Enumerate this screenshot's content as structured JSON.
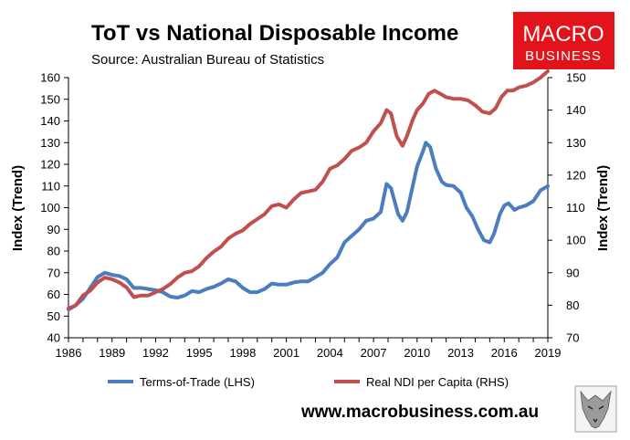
{
  "header": {
    "title": "ToT vs National Disposable Income",
    "subtitle": "Source: Australian Bureau of Statistics"
  },
  "logo": {
    "line1": "MACRO",
    "line2": "BUSINESS",
    "color": "#e3131b"
  },
  "footer": {
    "url": "www.macrobusiness.com.au"
  },
  "colors": {
    "tot": "#4a7ebf",
    "ndi": "#c0504d",
    "axis": "#000000"
  },
  "chart_data": {
    "type": "line",
    "title": "ToT vs National Disposable Income",
    "xlabel": "",
    "ylabel_left": "Index (Trend)",
    "ylabel_right": "Index (Trend)",
    "x_ticks": [
      "1986",
      "1989",
      "1992",
      "1995",
      "1998",
      "2001",
      "2004",
      "2007",
      "2010",
      "2013",
      "2016",
      "2019"
    ],
    "xlim": [
      1986,
      2019
    ],
    "ylim_left": [
      40,
      160
    ],
    "ylim_right": [
      70,
      150
    ],
    "yticks_left": [
      "40",
      "50",
      "60",
      "70",
      "80",
      "90",
      "100",
      "110",
      "120",
      "130",
      "140",
      "150",
      "160"
    ],
    "yticks_right": [
      "70",
      "80",
      "90",
      "100",
      "110",
      "120",
      "130",
      "140",
      "150"
    ],
    "legend_position": "bottom",
    "grid": false,
    "series": [
      {
        "name": "Terms-of-Trade (LHS)",
        "axis": "left",
        "color": "#4a7ebf",
        "points": [
          [
            1986.0,
            53
          ],
          [
            1986.5,
            55
          ],
          [
            1987.0,
            58
          ],
          [
            1987.5,
            63
          ],
          [
            1988.0,
            68
          ],
          [
            1988.5,
            70
          ],
          [
            1989.0,
            69
          ],
          [
            1989.5,
            68.5
          ],
          [
            1990.0,
            67
          ],
          [
            1990.5,
            63
          ],
          [
            1991.0,
            63
          ],
          [
            1991.5,
            62.5
          ],
          [
            1992.0,
            62
          ],
          [
            1992.5,
            61
          ],
          [
            1993.0,
            59
          ],
          [
            1993.5,
            58.5
          ],
          [
            1994.0,
            59.5
          ],
          [
            1994.5,
            61.5
          ],
          [
            1995.0,
            61
          ],
          [
            1995.5,
            62.5
          ],
          [
            1996.0,
            63.5
          ],
          [
            1996.5,
            65
          ],
          [
            1997.0,
            67
          ],
          [
            1997.5,
            66
          ],
          [
            1998.0,
            63
          ],
          [
            1998.5,
            61
          ],
          [
            1999.0,
            61
          ],
          [
            1999.5,
            62.5
          ],
          [
            2000.0,
            65
          ],
          [
            2000.5,
            64.5
          ],
          [
            2001.0,
            64.5
          ],
          [
            2001.5,
            65.5
          ],
          [
            2002.0,
            66
          ],
          [
            2002.5,
            66
          ],
          [
            2003.0,
            68
          ],
          [
            2003.5,
            70
          ],
          [
            2004.0,
            74
          ],
          [
            2004.5,
            77
          ],
          [
            2005.0,
            84
          ],
          [
            2005.5,
            87
          ],
          [
            2006.0,
            90
          ],
          [
            2006.5,
            94
          ],
          [
            2007.0,
            95
          ],
          [
            2007.5,
            98
          ],
          [
            2007.9,
            111
          ],
          [
            2008.2,
            109
          ],
          [
            2008.7,
            97
          ],
          [
            2009.0,
            94
          ],
          [
            2009.3,
            98
          ],
          [
            2009.7,
            110
          ],
          [
            2010.0,
            119
          ],
          [
            2010.4,
            126
          ],
          [
            2010.6,
            130
          ],
          [
            2010.9,
            128
          ],
          [
            2011.3,
            118
          ],
          [
            2011.7,
            112
          ],
          [
            2012.0,
            110.5
          ],
          [
            2012.5,
            110
          ],
          [
            2013.0,
            107
          ],
          [
            2013.4,
            100
          ],
          [
            2013.8,
            96
          ],
          [
            2014.2,
            90
          ],
          [
            2014.6,
            85
          ],
          [
            2015.0,
            84
          ],
          [
            2015.3,
            88
          ],
          [
            2015.7,
            97
          ],
          [
            2016.0,
            101
          ],
          [
            2016.3,
            102
          ],
          [
            2016.7,
            99
          ],
          [
            2017.0,
            100
          ],
          [
            2017.5,
            101
          ],
          [
            2018.0,
            103
          ],
          [
            2018.5,
            108
          ],
          [
            2019.0,
            110
          ]
        ]
      },
      {
        "name": "Real NDI per Capita (RHS)",
        "axis": "right",
        "color": "#c0504d",
        "points": [
          [
            1986.0,
            79
          ],
          [
            1986.5,
            80
          ],
          [
            1987.0,
            83
          ],
          [
            1987.5,
            84.5
          ],
          [
            1988.0,
            87
          ],
          [
            1988.5,
            88.5
          ],
          [
            1989.0,
            88
          ],
          [
            1989.5,
            87
          ],
          [
            1990.0,
            85.5
          ],
          [
            1990.5,
            82.5
          ],
          [
            1991.0,
            83
          ],
          [
            1991.5,
            83
          ],
          [
            1992.0,
            84
          ],
          [
            1992.5,
            85
          ],
          [
            1993.0,
            86.5
          ],
          [
            1993.5,
            88.5
          ],
          [
            1994.0,
            90
          ],
          [
            1994.5,
            90.5
          ],
          [
            1995.0,
            92
          ],
          [
            1995.5,
            94.5
          ],
          [
            1996.0,
            96.5
          ],
          [
            1996.5,
            98
          ],
          [
            1997.0,
            100.5
          ],
          [
            1997.5,
            102
          ],
          [
            1998.0,
            103
          ],
          [
            1998.5,
            105
          ],
          [
            1999.0,
            106.5
          ],
          [
            1999.5,
            108
          ],
          [
            2000.0,
            110.5
          ],
          [
            2000.5,
            111
          ],
          [
            2001.0,
            110
          ],
          [
            2001.5,
            112.5
          ],
          [
            2002.0,
            114.5
          ],
          [
            2002.5,
            115
          ],
          [
            2003.0,
            115.5
          ],
          [
            2003.5,
            118
          ],
          [
            2004.0,
            122
          ],
          [
            2004.5,
            123
          ],
          [
            2005.0,
            125
          ],
          [
            2005.5,
            127.5
          ],
          [
            2006.0,
            128.5
          ],
          [
            2006.5,
            130
          ],
          [
            2007.0,
            133.5
          ],
          [
            2007.5,
            136
          ],
          [
            2007.9,
            140
          ],
          [
            2008.2,
            139
          ],
          [
            2008.6,
            132
          ],
          [
            2009.0,
            129
          ],
          [
            2009.3,
            132
          ],
          [
            2009.7,
            137
          ],
          [
            2010.0,
            140
          ],
          [
            2010.4,
            142
          ],
          [
            2010.8,
            145
          ],
          [
            2011.2,
            146
          ],
          [
            2011.6,
            145
          ],
          [
            2012.0,
            144
          ],
          [
            2012.5,
            143.5
          ],
          [
            2013.0,
            143.5
          ],
          [
            2013.5,
            143
          ],
          [
            2014.0,
            141.5
          ],
          [
            2014.5,
            139.5
          ],
          [
            2015.0,
            139
          ],
          [
            2015.4,
            140.5
          ],
          [
            2015.8,
            144
          ],
          [
            2016.2,
            146
          ],
          [
            2016.6,
            146
          ],
          [
            2017.0,
            147
          ],
          [
            2017.5,
            147.5
          ],
          [
            2018.0,
            148.5
          ],
          [
            2018.5,
            150
          ],
          [
            2019.0,
            152
          ]
        ]
      }
    ]
  }
}
